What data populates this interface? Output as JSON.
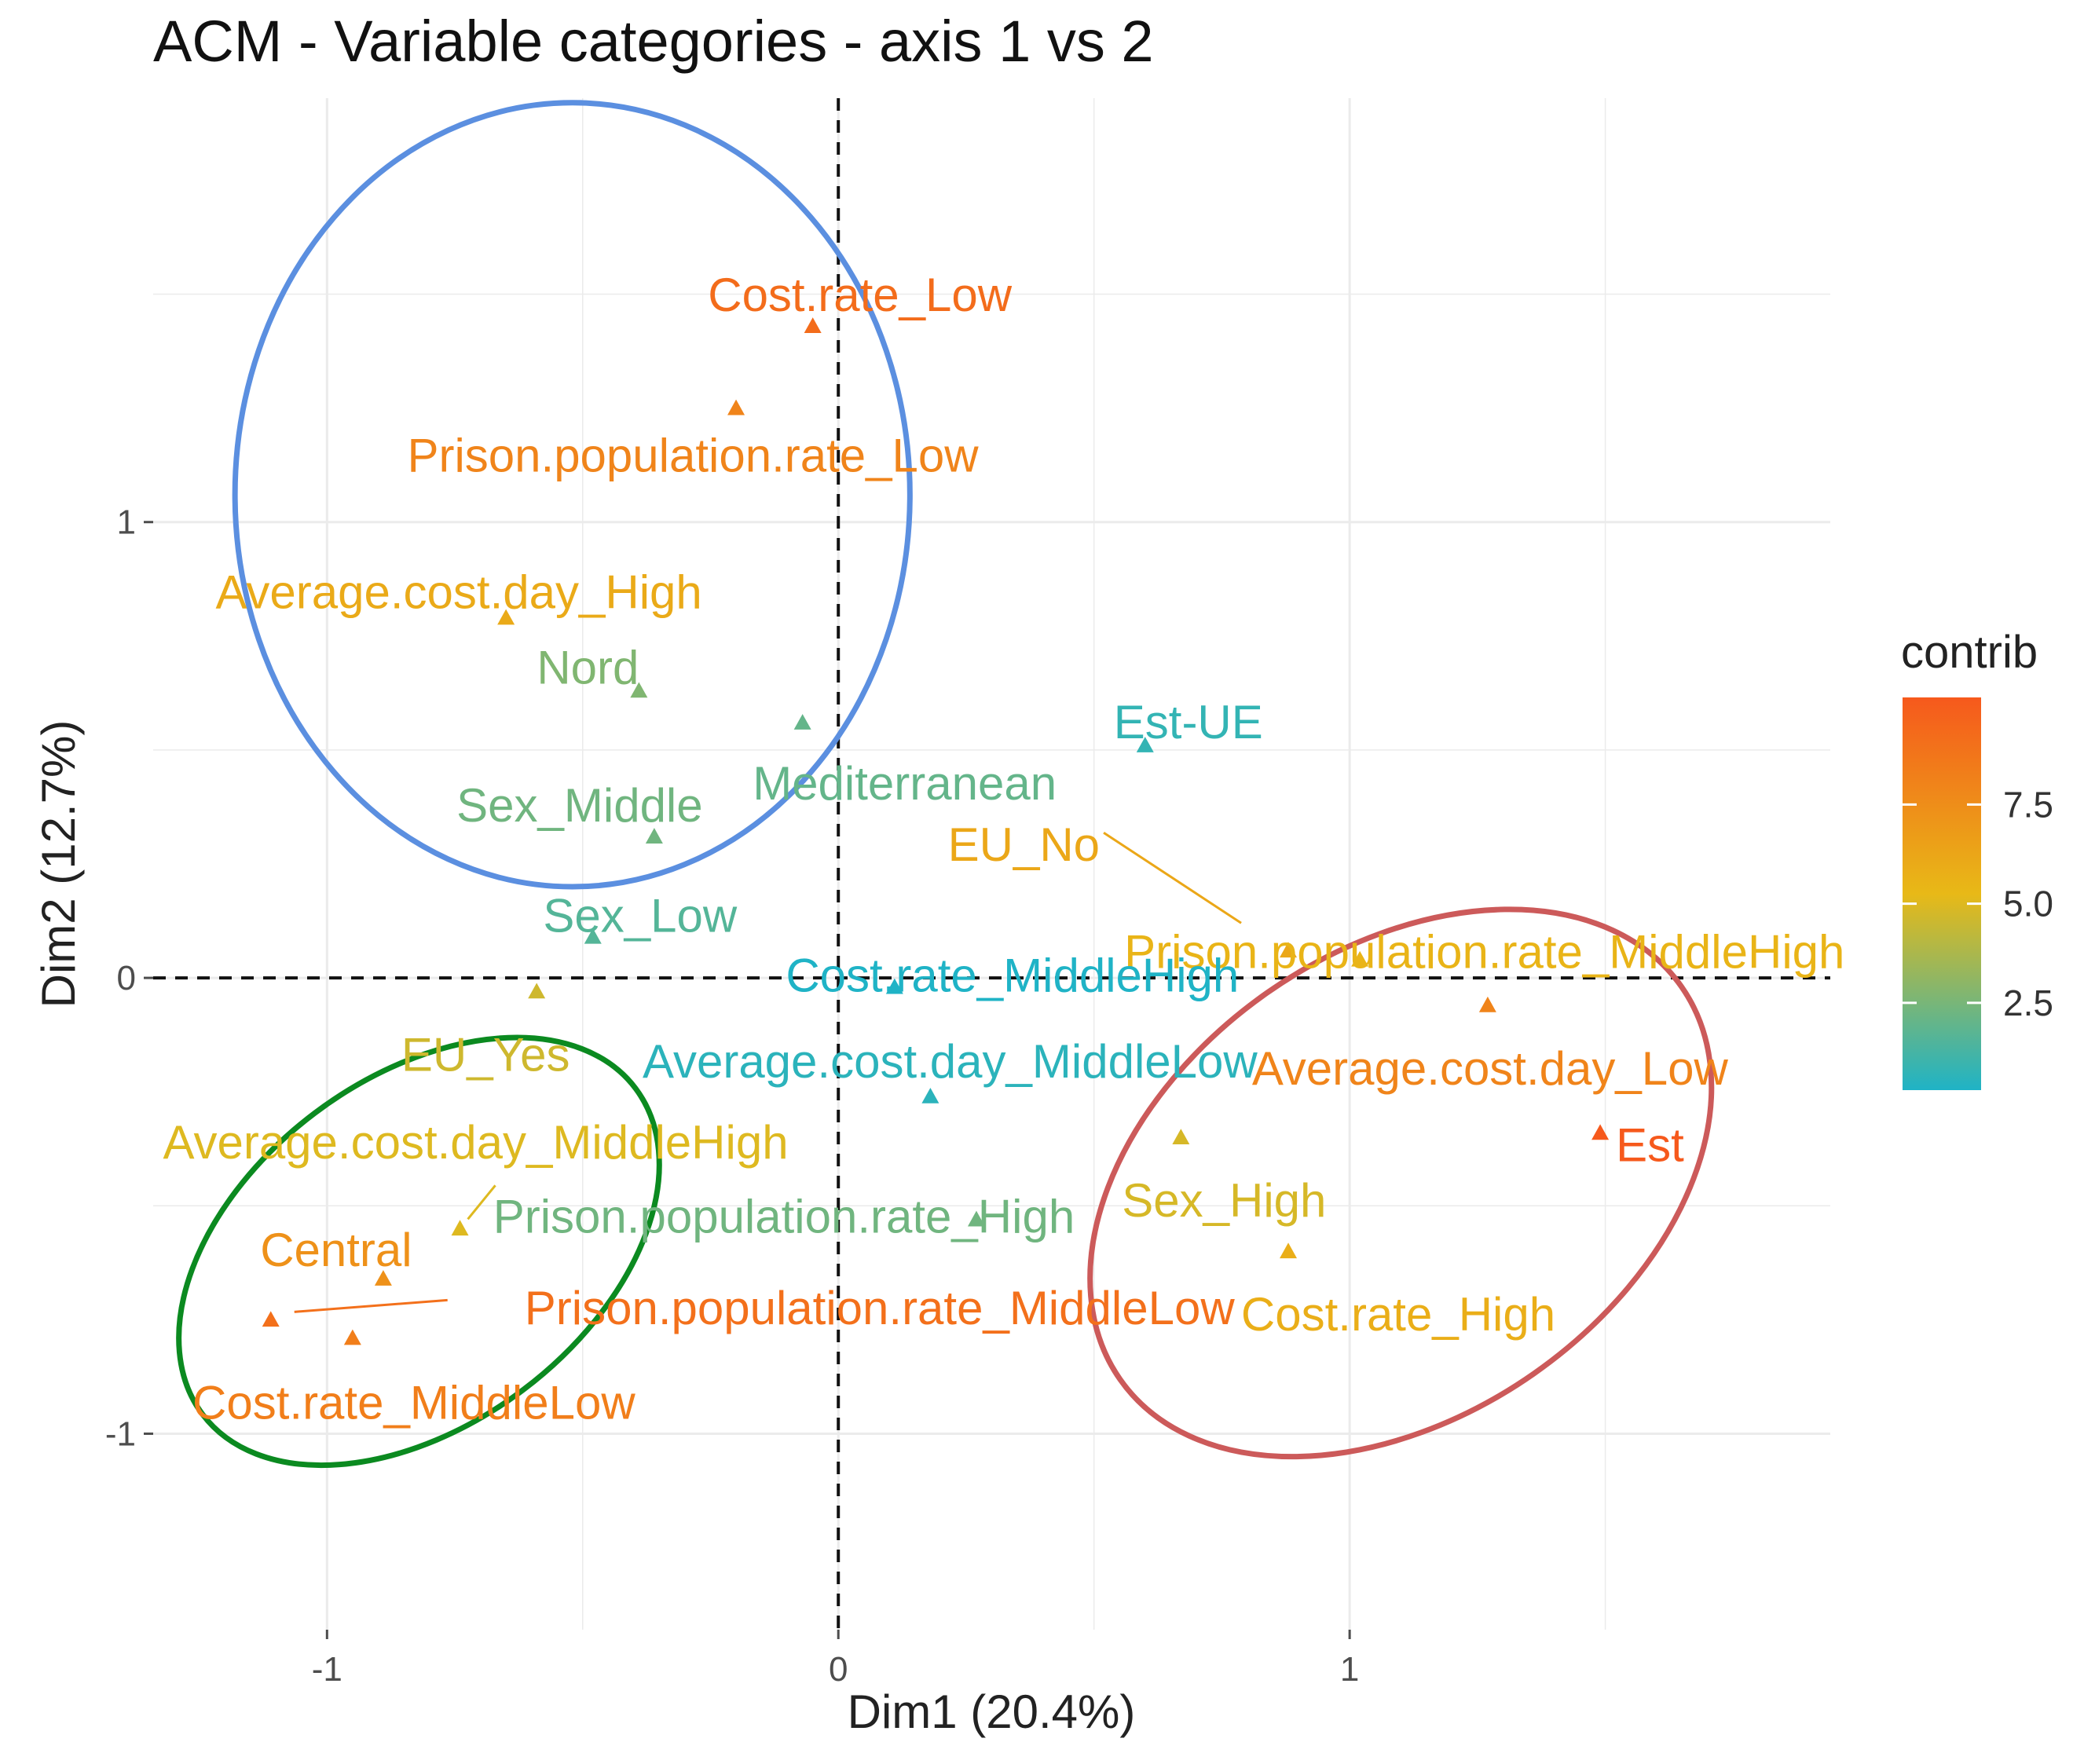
{
  "chart_data": {
    "type": "scatter",
    "title": "ACM - Variable categories - axis 1 vs 2",
    "xlabel": "Dim1 (20.4%)",
    "ylabel": "Dim2 (12.7%)",
    "xlim": [
      -1.34,
      1.94
    ],
    "ylim": [
      -1.43,
      1.93
    ],
    "x_ticks": [
      -1,
      0,
      1
    ],
    "x_tick_labels": [
      "-1",
      "0",
      "1"
    ],
    "y_ticks": [
      -1,
      0,
      1
    ],
    "y_tick_labels": [
      "-1",
      "0",
      "1"
    ],
    "reference_lines": {
      "x": 0,
      "y": 0,
      "style": "dashed"
    },
    "grid": true,
    "legend": {
      "title": "contrib",
      "position": "right",
      "range": [
        0.3,
        10.2
      ],
      "ticks": [
        2.5,
        5.0,
        7.5
      ],
      "tick_labels": [
        "2.5",
        "5.0",
        "7.5"
      ],
      "colors": [
        "#1fb3c6",
        "#e8b917",
        "#f6591c"
      ]
    },
    "points": [
      {
        "label": "Cost.rate_Low",
        "x": -0.05,
        "y": 1.43,
        "contrib": 9.2
      },
      {
        "label": "Prison.population.rate_Low",
        "x": -0.2,
        "y": 1.25,
        "contrib": 8.0
      },
      {
        "label": "Average.cost.day_High",
        "x": -0.65,
        "y": 0.79,
        "contrib": 6.0
      },
      {
        "label": "Nord",
        "x": -0.39,
        "y": 0.63,
        "contrib": 2.7
      },
      {
        "label": "Mediterranean",
        "x": -0.07,
        "y": 0.56,
        "contrib": 2.0
      },
      {
        "label": "Sex_Middle",
        "x": -0.36,
        "y": 0.31,
        "contrib": 2.3
      },
      {
        "label": "Sex_Low",
        "x": -0.48,
        "y": 0.09,
        "contrib": 1.6
      },
      {
        "label": "EU_Yes",
        "x": -0.59,
        "y": -0.03,
        "contrib": 4.6
      },
      {
        "label": "Est-UE",
        "x": 0.6,
        "y": 0.51,
        "contrib": 0.8
      },
      {
        "label": "EU_No",
        "x": 0.88,
        "y": 0.06,
        "contrib": 6.2
      },
      {
        "label": "Prison.population.rate_MiddleHigh",
        "x": 1.02,
        "y": 0.04,
        "contrib": 5.5
      },
      {
        "label": "Cost.rate_MiddleHigh",
        "x": 0.11,
        "y": -0.02,
        "contrib": 0.3
      },
      {
        "label": "Average.cost.day_Low",
        "x": 1.27,
        "y": -0.06,
        "contrib": 8.0
      },
      {
        "label": "Average.cost.day_MiddleLow",
        "x": 0.18,
        "y": -0.26,
        "contrib": 0.6
      },
      {
        "label": "Est",
        "x": 1.49,
        "y": -0.34,
        "contrib": 10.2
      },
      {
        "label": "Sex_High",
        "x": 0.67,
        "y": -0.35,
        "contrib": 4.8
      },
      {
        "label": "Cost.rate_High",
        "x": 0.88,
        "y": -0.6,
        "contrib": 5.8
      },
      {
        "label": "Average.cost.day_MiddleHigh",
        "x": -0.74,
        "y": -0.55,
        "contrib": 5.0
      },
      {
        "label": "Prison.population.rate_High",
        "x": 0.27,
        "y": -0.53,
        "contrib": 2.3
      },
      {
        "label": "Central",
        "x": -0.89,
        "y": -0.66,
        "contrib": 7.3
      },
      {
        "label": "Prison.population.rate_MiddleLow",
        "x": -1.11,
        "y": -0.75,
        "contrib": 9.0
      },
      {
        "label": "Cost.rate_MiddleLow",
        "x": -0.95,
        "y": -0.79,
        "contrib": 8.3
      }
    ],
    "ellipses": [
      {
        "name": "blue-cluster",
        "color": "#5b8fe0",
        "cx": -0.52,
        "cy": 1.06,
        "rx": 0.66,
        "ry": 0.86,
        "rotate_deg": 0
      },
      {
        "name": "green-cluster",
        "color": "#0b8a20",
        "cx": -0.82,
        "cy": -0.6,
        "rx": 0.53,
        "ry": 0.38,
        "rotate_deg": -37
      },
      {
        "name": "red-cluster",
        "color": "#cc5a5a",
        "cx": 1.1,
        "cy": -0.45,
        "rx": 0.67,
        "ry": 0.51,
        "rotate_deg": -35
      }
    ]
  }
}
